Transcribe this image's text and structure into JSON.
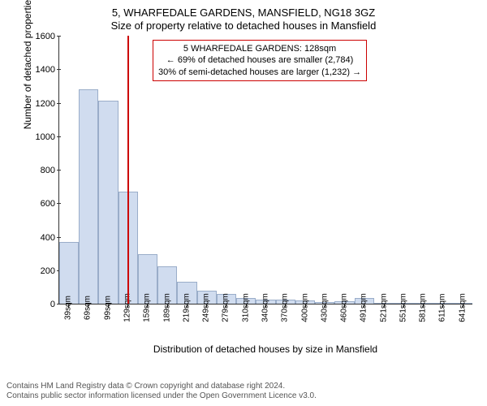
{
  "chart": {
    "type": "histogram",
    "title_main": "5, WHARFEDALE GARDENS, MANSFIELD, NG18 3GZ",
    "title_sub": "Size of property relative to detached houses in Mansfield",
    "title_fontsize": 13,
    "ylabel": "Number of detached properties",
    "xlabel": "Distribution of detached houses by size in Mansfield",
    "label_fontsize": 12,
    "tick_fontsize": 11,
    "xtick_fontsize": 10,
    "background_color": "#ffffff",
    "bar_fill_color": "#d0dcef",
    "bar_border_color": "#9aadc9",
    "marker_color": "#cc0000",
    "marker_position_sqm": 128,
    "x_categories": [
      "39sqm",
      "69sqm",
      "99sqm",
      "129sqm",
      "159sqm",
      "189sqm",
      "219sqm",
      "249sqm",
      "279sqm",
      "310sqm",
      "340sqm",
      "370sqm",
      "400sqm",
      "430sqm",
      "460sqm",
      "491sqm",
      "521sqm",
      "551sqm",
      "581sqm",
      "611sqm",
      "641sqm"
    ],
    "bar_values": [
      370,
      1280,
      1210,
      670,
      295,
      225,
      130,
      80,
      60,
      35,
      25,
      25,
      20,
      10,
      15,
      35,
      2,
      2,
      2,
      2,
      2
    ],
    "ylim": [
      0,
      1600
    ],
    "ytick_step": 200,
    "y_ticks": [
      0,
      200,
      400,
      600,
      800,
      1000,
      1200,
      1400,
      1600
    ],
    "annotation": {
      "line1": "5 WHARFEDALE GARDENS: 128sqm",
      "line2": "← 69% of detached houses are smaller (2,784)",
      "line3": "30% of semi-detached houses are larger (1,232) →",
      "border_color": "#cc0000",
      "fontsize": 11
    },
    "footer": {
      "line1": "Contains HM Land Registry data © Crown copyright and database right 2024.",
      "line2": "Contains public sector information licensed under the Open Government Licence v3.0."
    }
  }
}
